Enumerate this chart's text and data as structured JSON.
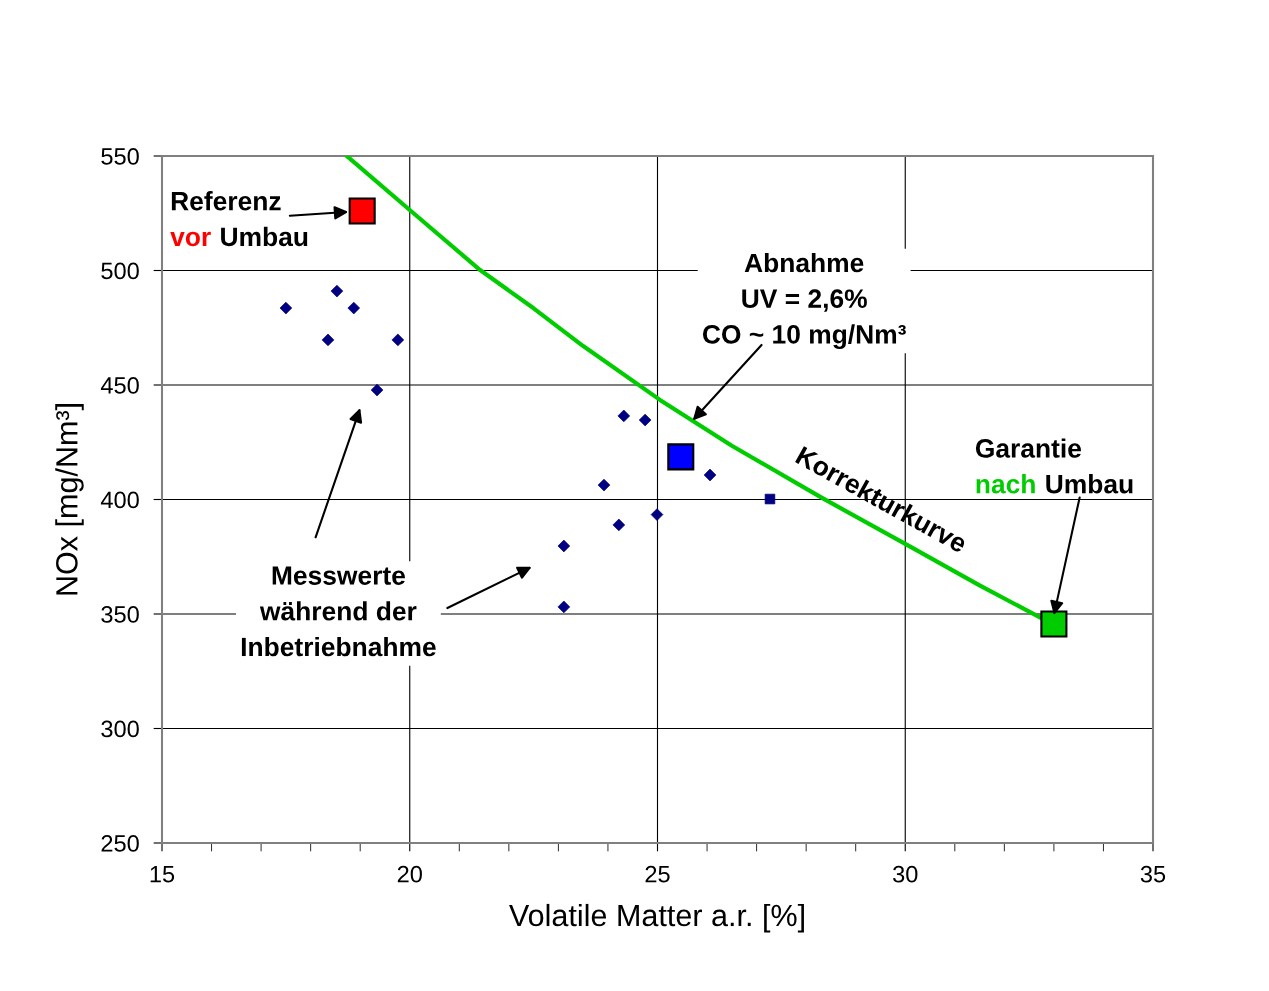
{
  "chart_data": {
    "type": "scatter",
    "xlabel": "Volatile Matter a.r. [%]",
    "ylabel": "NOx [mg/Nm³]",
    "xlim": [
      15,
      35
    ],
    "ylim": [
      250,
      550
    ],
    "xticks": [
      15,
      {
        "value": 16,
        "label": null
      },
      {
        "value": 17,
        "label": null
      },
      {
        "value": 18,
        "label": null
      },
      {
        "value": 19,
        "label": null
      },
      20,
      {
        "value": 21,
        "label": null
      },
      {
        "value": 22,
        "label": null
      },
      {
        "value": 23,
        "label": null
      },
      {
        "value": 24,
        "label": null
      },
      25,
      {
        "value": 26,
        "label": null
      },
      {
        "value": 27,
        "label": null
      },
      {
        "value": 28,
        "label": null
      },
      {
        "value": 29,
        "label": null
      },
      30,
      {
        "value": 31,
        "label": null
      },
      {
        "value": 32,
        "label": null
      },
      {
        "value": 33,
        "label": null
      },
      {
        "value": 34,
        "label": null
      },
      35
    ],
    "yticks": [
      250,
      300,
      350,
      400,
      450,
      500,
      550
    ],
    "grid": true,
    "legend": false,
    "series": [
      {
        "marker": "diamond",
        "color": "#000080",
        "x": [
          17.5,
          18.53,
          18.87,
          18.35,
          19.76,
          19.34,
          24.32,
          24.75,
          23.92,
          26.06,
          24.22,
          24.99,
          23.11,
          23.11
        ],
        "values": [
          483.6,
          491,
          483.6,
          469.7,
          469.7,
          447.8,
          436.5,
          434.7,
          406.3,
          410.7,
          388.9,
          393.4,
          379.7,
          353.1
        ]
      },
      {
        "marker": "square",
        "color": "#000080",
        "x": [
          27.27
        ],
        "values": [
          400.2
        ]
      },
      {
        "type": "line",
        "name": "Korrekturkurve",
        "color": "#00cc00",
        "x": [
          18.73,
          20,
          21.42,
          22.5,
          23.5,
          25.05,
          26.5,
          28.32,
          30,
          31.5,
          32.72
        ],
        "values": [
          550,
          526.4,
          500.2,
          483.5,
          467,
          443.5,
          423.5,
          400.7,
          380.6,
          362.5,
          348.5
        ]
      },
      {
        "marker": "square",
        "color": "#ff0000",
        "x": [
          19.04
        ],
        "values": [
          526
        ]
      },
      {
        "marker": "square",
        "color": "#0000ff",
        "x": [
          25.47
        ],
        "values": [
          418.6
        ]
      },
      {
        "marker": "square",
        "color": "#00cc00",
        "x": [
          33.0
        ],
        "values": [
          345.6
        ]
      }
    ],
    "annotations": [
      {
        "text": "Referenz\nvor Umbau",
        "x": 19.04,
        "y": 526
      },
      {
        "text": "Abnahme\nUV = 2,6%\nCO ~ 10 mg/Nm³",
        "x": 25.71,
        "y": 434.5
      },
      {
        "text": "Garantie\nnach Umbau",
        "x": 33.0,
        "y": 349.5
      },
      "Messwerte\nwährend der\nInbetriebnahme"
    ]
  }
}
